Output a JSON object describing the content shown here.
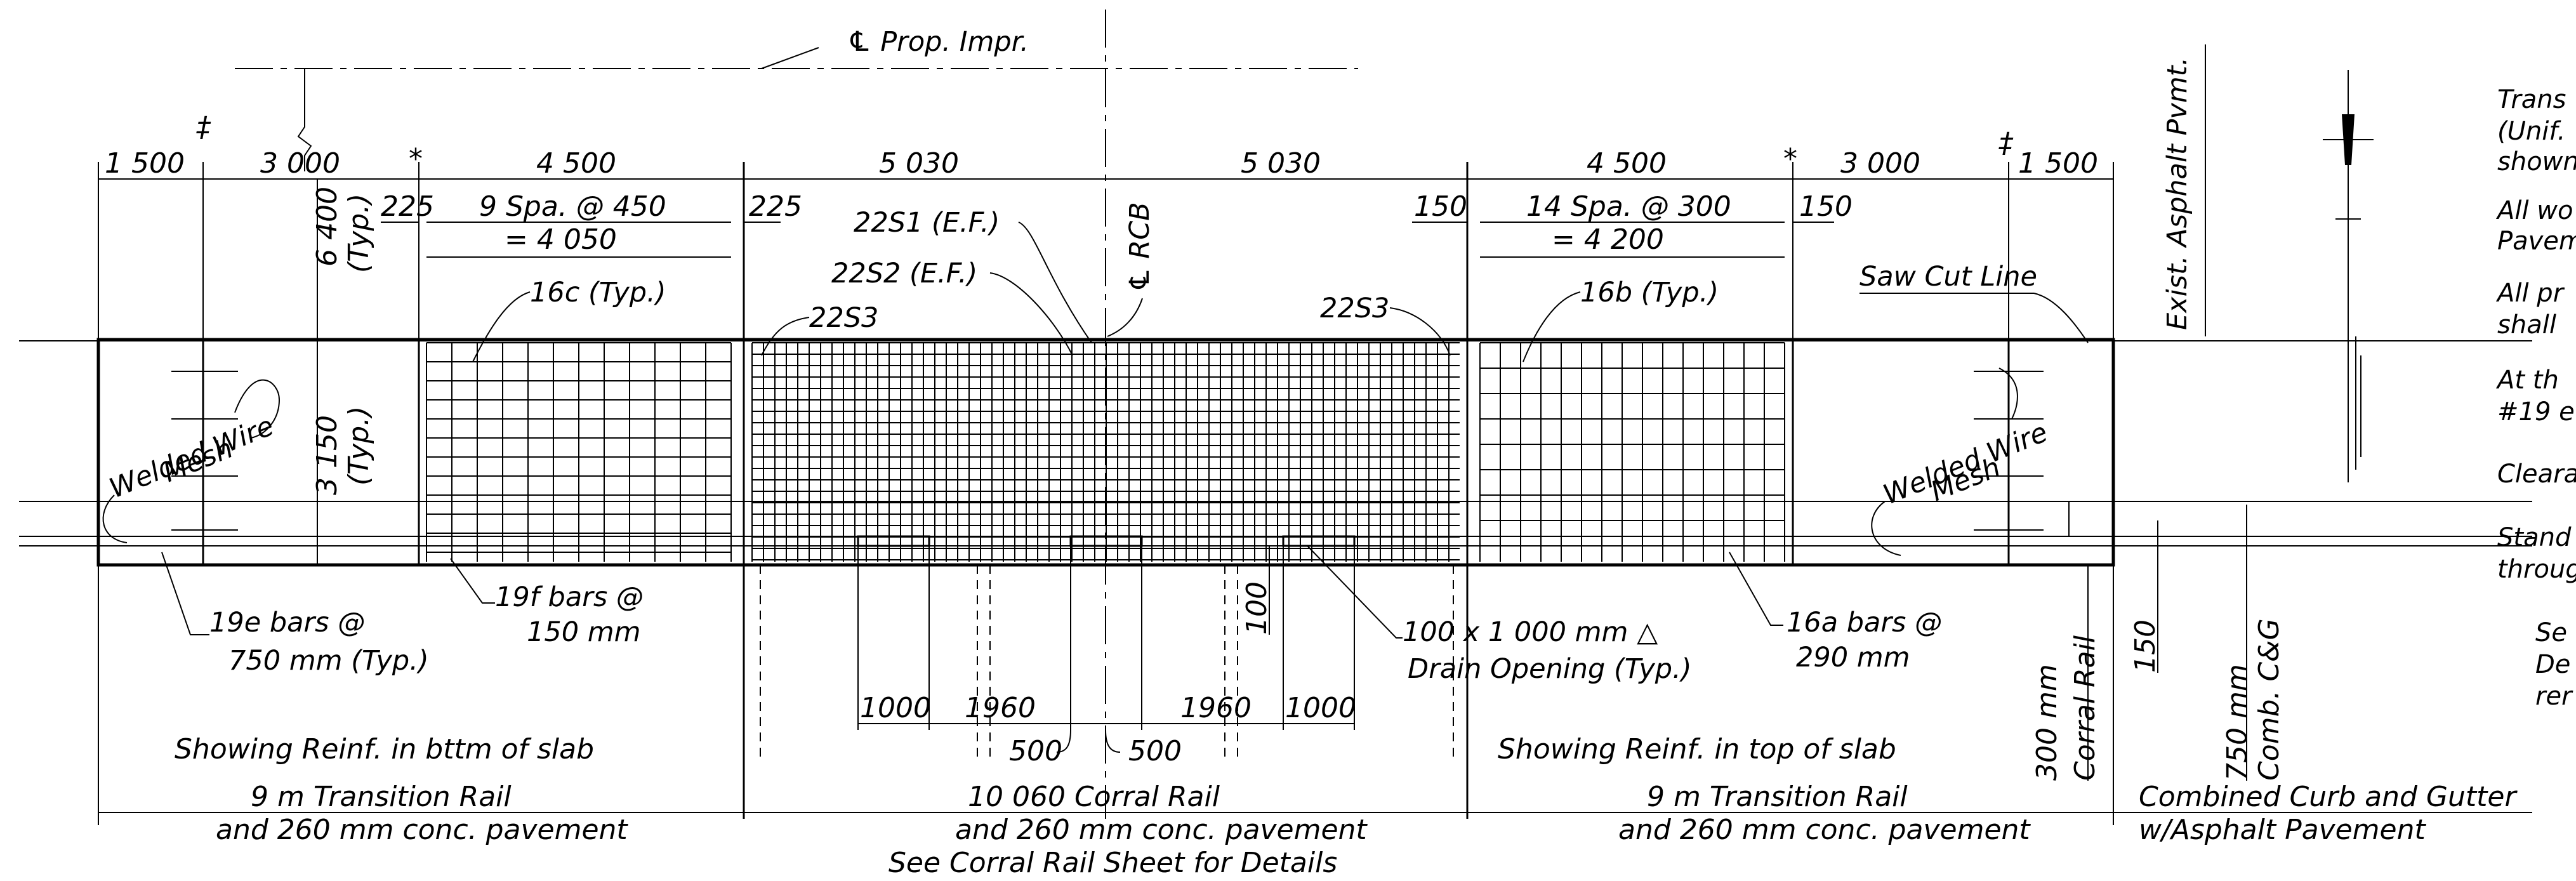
{
  "centerline": {
    "label": "℄ Prop. Impr."
  },
  "top_dimensions": [
    "1 500",
    "3 000",
    "4 500",
    "5 030",
    "5 030",
    "4 500",
    "3 000",
    "1 500"
  ],
  "spacing_labels": {
    "left_225": "225",
    "left_spa_line1": "9 Spa. @ 450",
    "left_spa_line2": "= 4 050",
    "mid_225": "225",
    "right_150_a": "150",
    "right_spa_line1": "14 Spa. @ 300",
    "right_spa_line2": "= 4 200",
    "right_150_b": "150"
  },
  "vertical_dimensions": {
    "top_value": "6 400",
    "top_note": "(Typ.)",
    "slab_value": "3 150",
    "slab_note": "(Typ.)"
  },
  "callouts": {
    "c16c": "16c (Typ.)",
    "s22S3_left": "22S3",
    "s22S1": "22S1 (E.F.)",
    "s22S2": "22S2 (E.F.)",
    "rcb": "℄ RCB",
    "s22S3_right": "22S3",
    "c16b": "16b (Typ.)",
    "saw_cut": "Saw Cut Line",
    "exist_asphalt": "Exist. Asphalt Pvmt.",
    "wwm_left_1": "Welded Wire",
    "wwm_left_2": "Mesh",
    "wwm_right_1": "Welded Wire",
    "wwm_right_2": "Mesh",
    "b19e_1": "19e bars @",
    "b19e_2": "750 mm (Typ.)",
    "b19f_1": "19f bars @",
    "b19f_2": "150 mm",
    "drain_1": "100 x 1 000 mm △",
    "drain_2": "Drain Opening (Typ.)",
    "b16a_1": "16a bars @",
    "b16a_2": "290 mm",
    "drain_100": "100",
    "dim_1000_left": "1000",
    "dim_1960_left": "1960",
    "dim_1960_right": "1960",
    "dim_1000_right": "1000",
    "dim_500_left": "500",
    "dim_500_right": "500",
    "rail_300_1": "300 mm",
    "rail_300_2": "Corral Rail",
    "dim_150": "150",
    "cg_750_1": "750 mm",
    "cg_750_2": "Comb. C&G"
  },
  "section_labels": {
    "left": "Showing Reinf. in bttm of slab",
    "right": "Showing Reinf. in top of slab"
  },
  "bottom_segments": [
    {
      "line1": "9 m Transition Rail",
      "line2": "and 260 mm conc. pavement",
      "line3": ""
    },
    {
      "line1": "10 060 Corral Rail",
      "line2": "and 260 mm conc. pavement",
      "line3": "See Corral Rail Sheet for Details"
    },
    {
      "line1": "9 m Transition Rail",
      "line2": "and 260 mm conc. pavement",
      "line3": ""
    },
    {
      "line1": "Combined Curb and Gutter",
      "line2": "w/Asphalt Pavement",
      "line3": ""
    }
  ],
  "notes": [
    "Trans",
    "(Unif.",
    "shown",
    "All wo",
    "Pavem",
    "All pr",
    "shall",
    "At th",
    "#19 e",
    "Cleara",
    "Stand",
    "throug",
    "Se",
    "De",
    "rer"
  ]
}
